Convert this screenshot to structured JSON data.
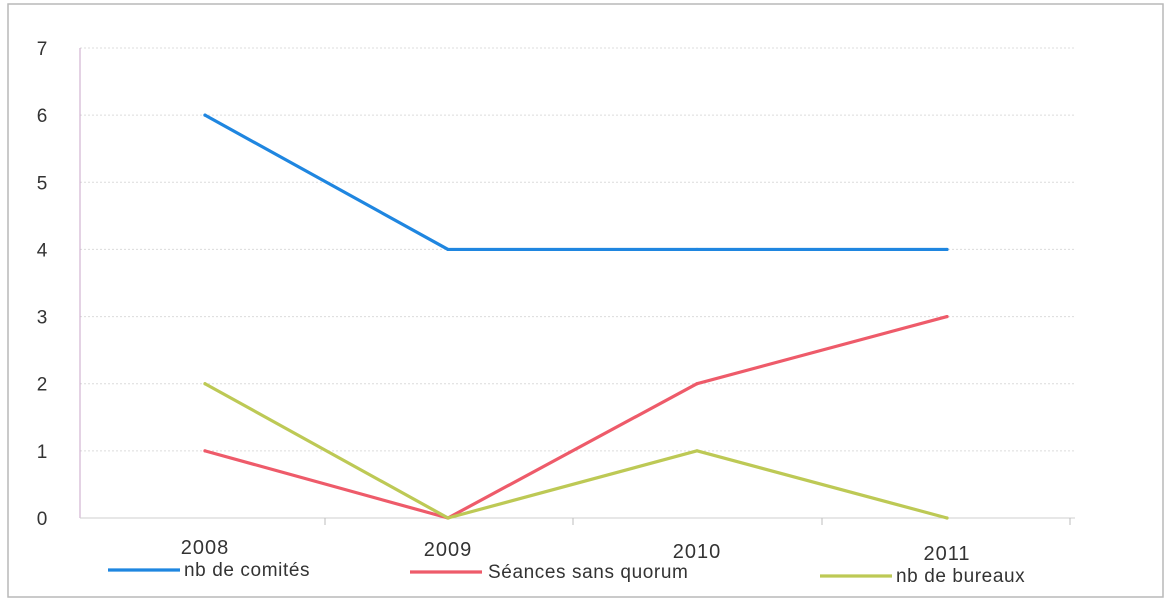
{
  "chart_data": {
    "type": "line",
    "categories": [
      "2008",
      "2009",
      "2010",
      "2011"
    ],
    "series": [
      {
        "name": "nb de comités",
        "values": [
          6,
          4,
          4,
          4
        ],
        "color": "#1f86e0"
      },
      {
        "name": "Séances sans quorum",
        "values": [
          1,
          0,
          2,
          3
        ],
        "color": "#ee5b6a"
      },
      {
        "name": "nb de bureaux",
        "values": [
          2,
          0,
          1,
          0
        ],
        "color": "#bdc955"
      }
    ],
    "yticks": [
      "0",
      "1",
      "2",
      "3",
      "4",
      "5",
      "6",
      "7"
    ],
    "ylim": [
      0,
      7
    ],
    "grid": true,
    "legend_position": "bottom"
  }
}
